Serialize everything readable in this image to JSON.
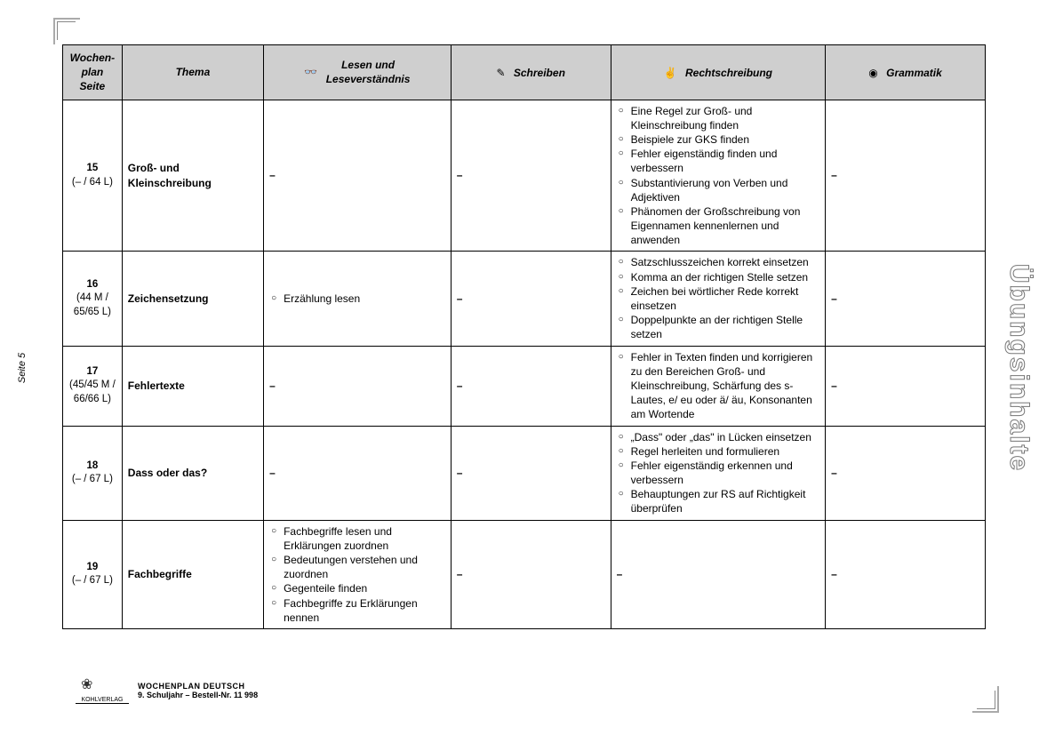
{
  "sidebar_page_label": "Seite 5",
  "side_title": "Übungsinhalte",
  "headers": {
    "col1_line1": "Wochen-",
    "col1_line2": "plan",
    "col1_line3": "Seite",
    "col2": "Thema",
    "col3_line1": "Lesen und",
    "col3_line2": "Leseverständnis",
    "col4": "Schreiben",
    "col5": "Rechtschreibung",
    "col6": "Grammatik",
    "icon_glasses": "👓",
    "icon_pencil": "✎",
    "icon_hand": "✌",
    "icon_target": "◉"
  },
  "rows": [
    {
      "num": "15",
      "pages": "(– / 64 L)",
      "thema": "Groß- und Kleinschreibung",
      "lesen": null,
      "schreiben": null,
      "recht": [
        "Eine Regel zur Groß- und Kleinschreibung finden",
        "Beispiele zur GKS finden",
        "Fehler eigenständig finden und verbessern",
        "Substantivierung von Verben und Adjektiven",
        "Phänomen der Großschreibung von Eigennamen kennenlernen und anwenden"
      ],
      "gram": null
    },
    {
      "num": "16",
      "pages": "(44 M / 65/65 L)",
      "thema": "Zeichensetzung",
      "lesen": [
        "Erzählung lesen"
      ],
      "schreiben": null,
      "recht": [
        "Satzschlusszeichen korrekt einsetzen",
        "Komma an der richtigen Stelle setzen",
        "Zeichen bei wörtlicher Rede korrekt einsetzen",
        "Doppelpunkte an der richtigen Stelle setzen"
      ],
      "gram": null
    },
    {
      "num": "17",
      "pages": "(45/45 M / 66/66 L)",
      "thema": "Fehlertexte",
      "lesen": null,
      "schreiben": null,
      "recht": [
        "Fehler in Texten finden und korrigieren zu den Bereichen Groß- und Kleinschreibung, Schärfung des s-Lautes, e/ eu oder ä/ äu, Konsonanten am Wortende"
      ],
      "gram": null
    },
    {
      "num": "18",
      "pages": "(– / 67 L)",
      "thema": "Dass oder das?",
      "lesen": null,
      "schreiben": null,
      "recht": [
        "„Dass\" oder „das\" in Lücken einsetzen",
        "Regel herleiten und formulieren",
        "Fehler eigenständig erkennen und verbessern",
        "Behauptungen zur RS auf Richtigkeit überprüfen"
      ],
      "gram": null
    },
    {
      "num": "19",
      "pages": "(– / 67 L)",
      "thema": "Fachbegriffe",
      "lesen": [
        "Fachbegriffe lesen und Erklärungen zuordnen",
        "Bedeutungen verstehen und zuordnen",
        "Gegenteile finden",
        "Fachbegriffe zu Erklärungen nennen"
      ],
      "schreiben": null,
      "recht": null,
      "gram": null
    }
  ],
  "footer": {
    "logo_text": "KOHLVERLAG",
    "line1": "WOCHENPLAN DEUTSCH",
    "line2": "9. Schuljahr    –    Bestell-Nr. 11 998"
  }
}
